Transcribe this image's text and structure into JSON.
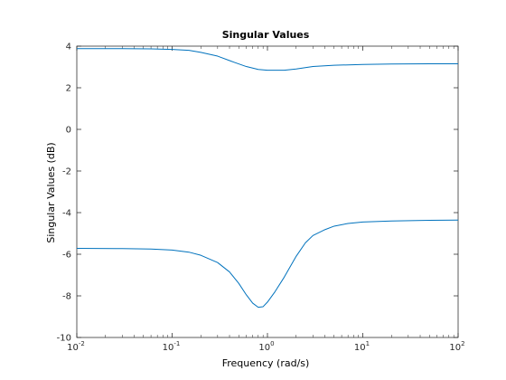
{
  "chart_data": {
    "type": "line",
    "title": "Singular Values",
    "xlabel": "Frequency (rad/s)",
    "ylabel": "Singular Values (dB)",
    "xscale": "log",
    "xlim": [
      0.01,
      100
    ],
    "ylim": [
      -10,
      4
    ],
    "grid": false,
    "x_ticks": [
      0.01,
      0.1,
      1,
      10,
      100
    ],
    "x_tick_base": "10",
    "x_tick_exponents": [
      "-2",
      "-1",
      "0",
      "1",
      "2"
    ],
    "y_ticks": [
      -10,
      -8,
      -6,
      -4,
      -2,
      0,
      2,
      4
    ],
    "y_tick_labels": [
      "-10",
      "-8",
      "-6",
      "-4",
      "-2",
      "0",
      "2",
      "4"
    ],
    "line_color": "#0072BD",
    "series": [
      {
        "x": [
          0.01,
          0.03,
          0.06,
          0.1,
          0.15,
          0.2,
          0.3,
          0.45,
          0.6,
          0.8,
          1.0,
          1.5,
          2.0,
          3.0,
          5.0,
          7.0,
          10,
          20,
          50,
          100
        ],
        "y": [
          3.88,
          3.88,
          3.87,
          3.84,
          3.8,
          3.7,
          3.52,
          3.22,
          3.02,
          2.88,
          2.84,
          2.84,
          2.9,
          3.02,
          3.08,
          3.1,
          3.12,
          3.14,
          3.15,
          3.15
        ]
      },
      {
        "x": [
          0.01,
          0.03,
          0.06,
          0.1,
          0.15,
          0.2,
          0.3,
          0.4,
          0.5,
          0.6,
          0.7,
          0.8,
          0.9,
          1.0,
          1.2,
          1.5,
          2.0,
          2.5,
          3.0,
          4.0,
          5.0,
          7.0,
          10,
          20,
          50,
          100
        ],
        "y": [
          -5.72,
          -5.73,
          -5.75,
          -5.8,
          -5.9,
          -6.05,
          -6.4,
          -6.85,
          -7.4,
          -7.95,
          -8.35,
          -8.55,
          -8.52,
          -8.3,
          -7.8,
          -7.1,
          -6.1,
          -5.45,
          -5.1,
          -4.82,
          -4.65,
          -4.52,
          -4.45,
          -4.4,
          -4.37,
          -4.36
        ]
      }
    ]
  }
}
